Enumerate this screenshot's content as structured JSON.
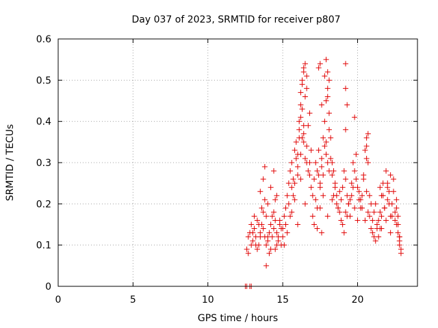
{
  "chart_data": {
    "type": "scatter",
    "title": "Day 037 of 2023, SRMTID for receiver p807",
    "xlabel": "GPS time / hours",
    "ylabel": "SRMTID / TECUs",
    "xlim": [
      0,
      24
    ],
    "ylim": [
      0,
      0.6
    ],
    "x_ticks": [
      0,
      5,
      10,
      15,
      20
    ],
    "x_tick_labels": [
      "0",
      "5",
      "10",
      "15",
      "20"
    ],
    "y_ticks": [
      0,
      0.1,
      0.2,
      0.3,
      0.4,
      0.5,
      0.6
    ],
    "y_tick_labels": [
      "0",
      "0.1",
      "0.2",
      "0.3",
      "0.4",
      "0.5",
      "0.6"
    ],
    "grid": true,
    "marker": "plus",
    "color": "#e00000",
    "series": [
      {
        "name": "SRMTID",
        "x": [
          12.6,
          12.7,
          12.8,
          12.9,
          13.0,
          13.1,
          13.2,
          13.3,
          13.4,
          13.5,
          13.6,
          13.7,
          13.8,
          13.9,
          14.0,
          14.1,
          14.2,
          14.3,
          14.4,
          14.5,
          14.6,
          14.7,
          14.8,
          14.9,
          12.7,
          12.9,
          13.1,
          13.3,
          13.5,
          13.7,
          13.9,
          14.1,
          14.3,
          14.5,
          14.7,
          14.9,
          13.0,
          13.2,
          13.4,
          13.6,
          13.8,
          14.0,
          14.2,
          14.4,
          14.6,
          14.8,
          13.5,
          13.7,
          13.8,
          14.0,
          14.2,
          14.4,
          14.6,
          13.9,
          14.5,
          15.0,
          15.1,
          15.2,
          15.3,
          15.4,
          15.5,
          15.6,
          15.7,
          15.8,
          15.9,
          16.0,
          16.1,
          16.2,
          16.3,
          16.4,
          16.5,
          16.6,
          16.7,
          16.8,
          16.9,
          15.0,
          15.2,
          15.4,
          15.6,
          15.8,
          16.0,
          16.2,
          16.4,
          16.6,
          16.8,
          15.1,
          15.3,
          15.5,
          15.7,
          15.9,
          16.1,
          16.3,
          16.5,
          16.7,
          16.9,
          15.6,
          15.8,
          16.0,
          16.2,
          16.3,
          16.4,
          16.6,
          16.8,
          16.1,
          16.2,
          16.3,
          16.4,
          16.5,
          16.6,
          16.2,
          16.4,
          16.0,
          16.5,
          17.0,
          17.1,
          17.2,
          17.3,
          17.4,
          17.5,
          17.6,
          17.7,
          17.8,
          17.9,
          18.0,
          18.1,
          18.2,
          18.3,
          18.4,
          18.5,
          18.6,
          18.7,
          18.8,
          18.9,
          17.0,
          17.2,
          17.4,
          17.6,
          17.8,
          18.0,
          18.2,
          18.4,
          18.6,
          18.8,
          17.1,
          17.3,
          17.5,
          17.7,
          17.9,
          18.1,
          18.3,
          18.5,
          18.7,
          18.9,
          17.3,
          17.5,
          17.7,
          17.9,
          18.1,
          18.3,
          17.6,
          18.0,
          17.4,
          17.5,
          17.9,
          18.0,
          18.1,
          17.6,
          18.0,
          17.8,
          19.0,
          19.1,
          19.2,
          19.3,
          19.4,
          19.5,
          19.6,
          19.7,
          19.8,
          19.9,
          20.0,
          20.1,
          20.2,
          20.3,
          20.4,
          20.5,
          20.6,
          20.7,
          20.8,
          20.9,
          19.0,
          19.2,
          19.4,
          19.6,
          19.8,
          20.0,
          20.2,
          20.4,
          20.6,
          20.8,
          19.1,
          19.3,
          19.5,
          19.7,
          19.9,
          20.1,
          20.3,
          20.5,
          20.7,
          20.9,
          19.2,
          19.2,
          19.3,
          19.2,
          19.8,
          20.6,
          20.7,
          20.6,
          21.0,
          21.1,
          21.2,
          21.3,
          21.4,
          21.5,
          21.6,
          21.7,
          21.8,
          21.9,
          22.0,
          22.1,
          22.2,
          22.3,
          22.4,
          22.5,
          22.6,
          22.7,
          22.8,
          21.0,
          21.2,
          21.4,
          21.6,
          21.8,
          22.0,
          22.2,
          22.4,
          22.6,
          22.8,
          21.1,
          21.3,
          21.5,
          21.7,
          21.9,
          22.1,
          22.3,
          22.5,
          22.7,
          22.9,
          21.5,
          21.6,
          22.0,
          22.2,
          22.6,
          22.7,
          22.8,
          22.9,
          22.8,
          22.7,
          12.5,
          12.6,
          12.8,
          12.9
        ],
        "y": [
          0.09,
          0.12,
          0.13,
          0.15,
          0.11,
          0.14,
          0.12,
          0.16,
          0.1,
          0.13,
          0.15,
          0.14,
          0.12,
          0.17,
          0.11,
          0.13,
          0.15,
          0.12,
          0.14,
          0.16,
          0.13,
          0.11,
          0.15,
          0.14,
          0.08,
          0.1,
          0.17,
          0.09,
          0.12,
          0.18,
          0.1,
          0.08,
          0.17,
          0.09,
          0.12,
          0.1,
          0.13,
          0.1,
          0.15,
          0.19,
          0.21,
          0.12,
          0.09,
          0.18,
          0.1,
          0.16,
          0.23,
          0.26,
          0.29,
          0.2,
          0.24,
          0.28,
          0.22,
          0.05,
          0.21,
          0.14,
          0.17,
          0.19,
          0.22,
          0.25,
          0.28,
          0.3,
          0.26,
          0.33,
          0.35,
          0.29,
          0.38,
          0.41,
          0.36,
          0.39,
          0.31,
          0.34,
          0.28,
          0.3,
          0.33,
          0.12,
          0.15,
          0.2,
          0.24,
          0.21,
          0.27,
          0.32,
          0.35,
          0.3,
          0.27,
          0.1,
          0.13,
          0.17,
          0.22,
          0.31,
          0.36,
          0.43,
          0.46,
          0.39,
          0.24,
          0.18,
          0.25,
          0.32,
          0.47,
          0.5,
          0.53,
          0.48,
          0.42,
          0.4,
          0.44,
          0.49,
          0.52,
          0.54,
          0.51,
          0.26,
          0.37,
          0.15,
          0.2,
          0.22,
          0.26,
          0.3,
          0.28,
          0.33,
          0.25,
          0.29,
          0.36,
          0.4,
          0.45,
          0.48,
          0.38,
          0.31,
          0.27,
          0.22,
          0.24,
          0.2,
          0.19,
          0.23,
          0.21,
          0.17,
          0.21,
          0.27,
          0.31,
          0.34,
          0.3,
          0.36,
          0.28,
          0.22,
          0.18,
          0.15,
          0.19,
          0.24,
          0.27,
          0.32,
          0.42,
          0.3,
          0.25,
          0.19,
          0.16,
          0.14,
          0.19,
          0.22,
          0.35,
          0.28,
          0.21,
          0.13,
          0.17,
          0.53,
          0.54,
          0.55,
          0.52,
          0.5,
          0.44,
          0.46,
          0.51,
          0.24,
          0.28,
          0.26,
          0.22,
          0.2,
          0.17,
          0.25,
          0.3,
          0.28,
          0.32,
          0.24,
          0.21,
          0.19,
          0.22,
          0.27,
          0.33,
          0.36,
          0.3,
          0.22,
          0.2,
          0.15,
          0.18,
          0.2,
          0.22,
          0.19,
          0.16,
          0.21,
          0.26,
          0.23,
          0.17,
          0.13,
          0.17,
          0.21,
          0.24,
          0.26,
          0.23,
          0.19,
          0.16,
          0.18,
          0.14,
          0.54,
          0.48,
          0.44,
          0.38,
          0.41,
          0.34,
          0.37,
          0.31,
          0.16,
          0.18,
          0.2,
          0.15,
          0.12,
          0.14,
          0.17,
          0.22,
          0.19,
          0.16,
          0.24,
          0.2,
          0.13,
          0.17,
          0.23,
          0.18,
          0.21,
          0.15,
          0.12,
          0.13,
          0.11,
          0.16,
          0.14,
          0.19,
          0.21,
          0.17,
          0.26,
          0.15,
          0.11,
          0.12,
          0.14,
          0.18,
          0.25,
          0.28,
          0.23,
          0.2,
          0.16,
          0.13,
          0.09,
          0.24,
          0.22,
          0.25,
          0.27,
          0.19,
          0.15,
          0.1,
          0.08,
          0.12,
          0.17,
          0.0,
          0.0,
          0.0,
          0.0
        ]
      }
    ]
  }
}
